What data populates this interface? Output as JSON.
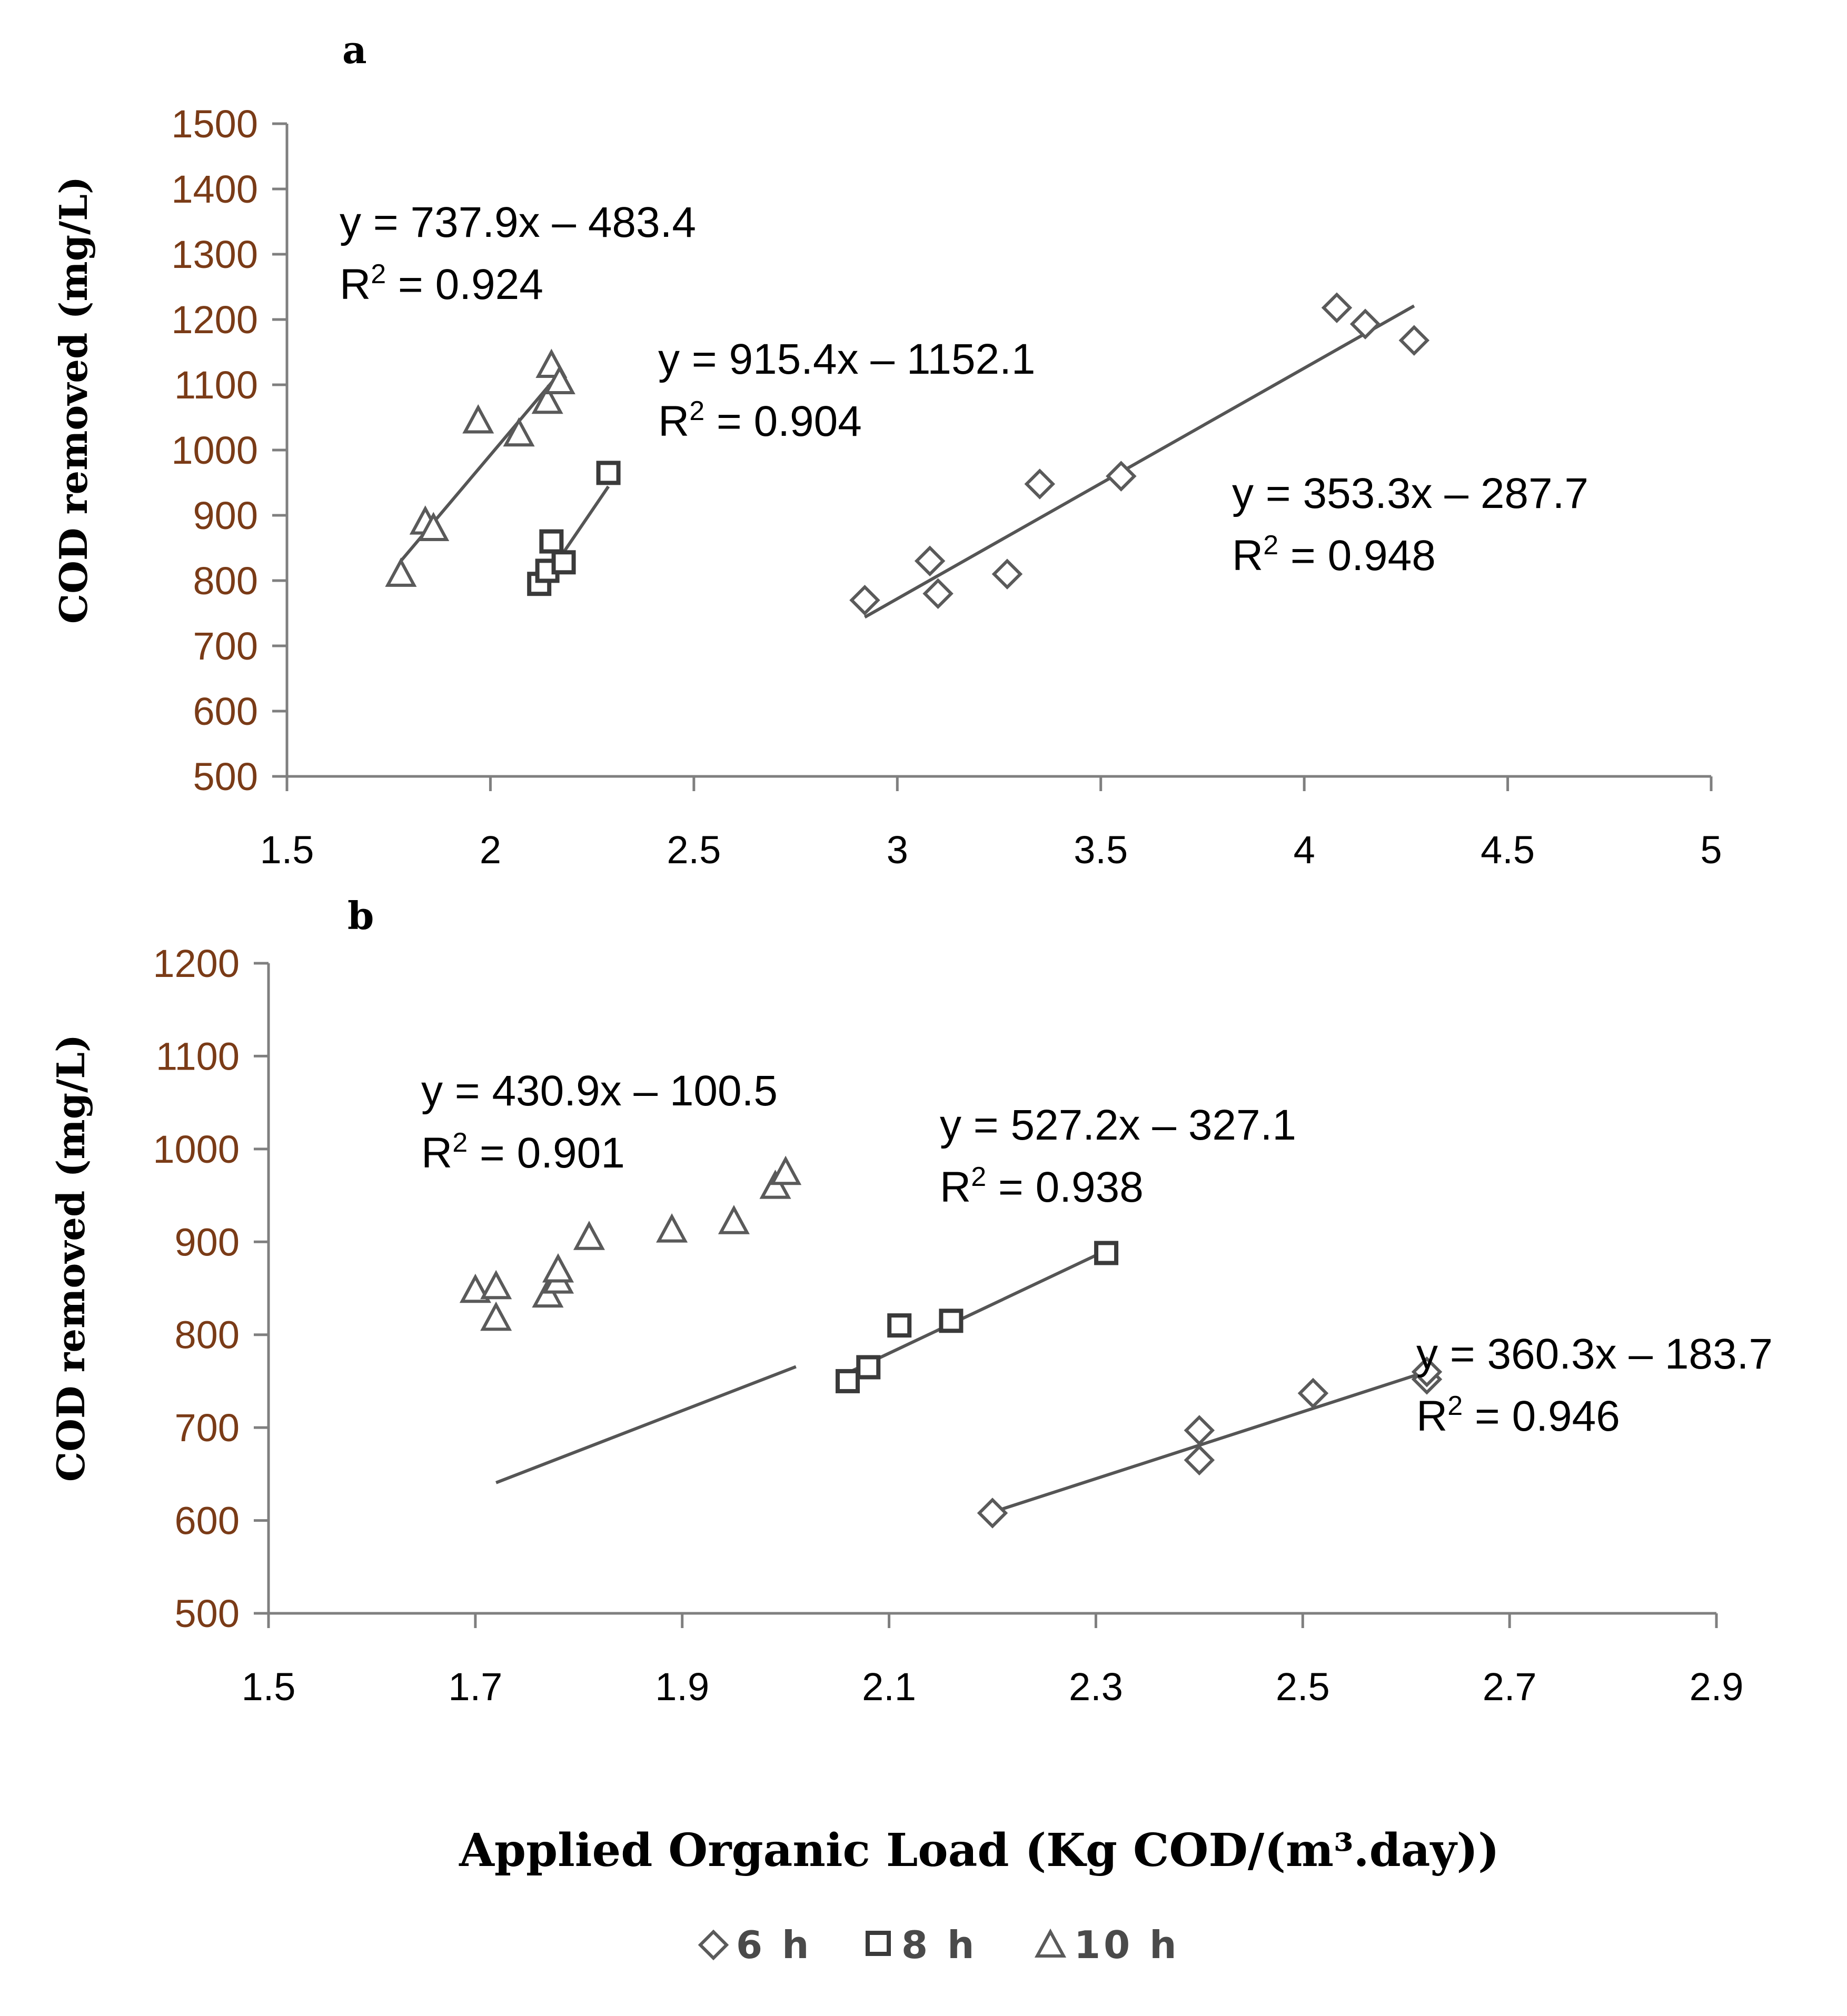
{
  "chart_data": [
    {
      "panel": "a",
      "type": "scatter",
      "title": "",
      "xlabel": "",
      "ylabel": "COD removed (mg/L)",
      "xlim": [
        1.5,
        5
      ],
      "ylim": [
        500,
        1500
      ],
      "xticks": [
        "1.5",
        "2",
        "2.5",
        "3",
        "3.5",
        "4",
        "4.5",
        "5"
      ],
      "yticks": [
        "500",
        "600",
        "700",
        "800",
        "900",
        "1000",
        "1100",
        "1200",
        "1300",
        "1400",
        "1500"
      ],
      "series": [
        {
          "name": "6 h",
          "marker": "diamond",
          "points": [
            [
              2.92,
              770
            ],
            [
              3.08,
              830
            ],
            [
              3.1,
              780
            ],
            [
              3.27,
              810
            ],
            [
              3.35,
              948
            ],
            [
              3.55,
              960
            ],
            [
              4.08,
              1218
            ],
            [
              4.15,
              1193
            ],
            [
              4.27,
              1168
            ]
          ],
          "trend": {
            "slope": 353.3,
            "intercept": -287.7,
            "x": [
              2.92,
              4.27
            ]
          },
          "equation": "y = 353.3x – 287.7",
          "r2_label": "R",
          "r2_sup": "2",
          "r2_value": " = 0.948"
        },
        {
          "name": "8 h",
          "marker": "square",
          "points": [
            [
              2.12,
              795
            ],
            [
              2.14,
              815
            ],
            [
              2.15,
              860
            ],
            [
              2.18,
              828
            ],
            [
              2.29,
              965
            ]
          ],
          "trend": {
            "slope": 915.4,
            "intercept": -1152.1,
            "x": [
              2.12,
              2.29
            ]
          },
          "equation": "y = 915.4x – 1152.1",
          "r2_label": "R",
          "r2_sup": "2",
          "r2_value": " = 0.904"
        },
        {
          "name": "10 h",
          "marker": "triangle",
          "points": [
            [
              1.78,
              810
            ],
            [
              1.84,
              890
            ],
            [
              1.86,
              880
            ],
            [
              1.97,
              1045
            ],
            [
              2.07,
              1025
            ],
            [
              2.14,
              1075
            ],
            [
              2.15,
              1130
            ],
            [
              2.17,
              1105
            ]
          ],
          "trend": {
            "slope": 737.9,
            "intercept": -483.4,
            "x": [
              1.78,
              2.16
            ]
          },
          "equation": "y = 737.9x – 483.4",
          "r2_label": "R",
          "r2_sup": "2",
          "r2_value": " = 0.924"
        }
      ]
    },
    {
      "panel": "b",
      "type": "scatter",
      "title": "",
      "xlabel": "Applied Organic Load (Kg COD/(m³.day))",
      "ylabel": "COD removed (mg/L)",
      "xlim": [
        1.5,
        2.9
      ],
      "ylim": [
        500,
        1200
      ],
      "xticks": [
        "1.5",
        "1.7",
        "1.9",
        "2.1",
        "2.3",
        "2.5",
        "2.7",
        "2.9"
      ],
      "yticks": [
        "500",
        "600",
        "700",
        "800",
        "900",
        "1000",
        "1100",
        "1200"
      ],
      "series": [
        {
          "name": "6 h",
          "marker": "diamond",
          "points": [
            [
              2.2,
              608
            ],
            [
              2.4,
              665
            ],
            [
              2.4,
              697
            ],
            [
              2.51,
              737
            ],
            [
              2.62,
              752
            ],
            [
              2.62,
              760
            ]
          ],
          "trend": {
            "slope": 360.3,
            "intercept": -183.7,
            "x": [
              2.2,
              2.62
            ]
          },
          "equation": "y = 360.3x – 183.7",
          "r2_label": "R",
          "r2_sup": "2",
          "r2_value": " = 0.946"
        },
        {
          "name": "8 h",
          "marker": "square",
          "points": [
            [
              2.06,
              750
            ],
            [
              2.08,
              765
            ],
            [
              2.11,
              810
            ],
            [
              2.16,
              815
            ],
            [
              2.31,
              888
            ]
          ],
          "trend": {
            "slope": 527.2,
            "intercept": -327.1,
            "x": [
              2.06,
              2.31
            ]
          },
          "equation": "y = 527.2x – 327.1",
          "r2_label": "R",
          "r2_sup": "2",
          "r2_value": " = 0.938"
        },
        {
          "name": "10 h",
          "marker": "triangle",
          "points": [
            [
              1.7,
              848
            ],
            [
              1.72,
              818
            ],
            [
              1.72,
              852
            ],
            [
              1.77,
              843
            ],
            [
              1.78,
              858
            ],
            [
              1.78,
              870
            ],
            [
              1.81,
              905
            ],
            [
              1.89,
              913
            ],
            [
              1.95,
              922
            ],
            [
              1.99,
              960
            ],
            [
              2.0,
              975
            ]
          ],
          "trend": {
            "slope": 430.9,
            "intercept": -100.5,
            "x": [
              1.72,
              2.01
            ]
          },
          "equation": "y = 430.9x – 100.5",
          "r2_label": "R",
          "r2_sup": "2",
          "r2_value": " = 0.901"
        }
      ]
    }
  ],
  "legend": {
    "position": "bottom-center",
    "items": [
      {
        "label": "6 h",
        "marker": "diamond"
      },
      {
        "label": "8 h",
        "marker": "square"
      },
      {
        "label": "10 h",
        "marker": "triangle"
      }
    ]
  }
}
